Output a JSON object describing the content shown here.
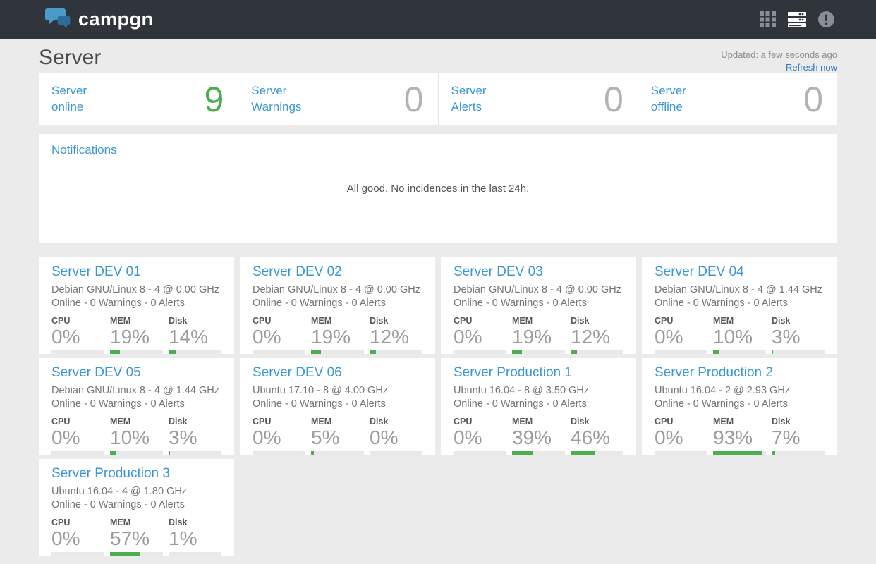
{
  "navbar": {
    "brand": "campgn",
    "icons": [
      {
        "name": "apps-grid-icon",
        "active": false
      },
      {
        "name": "servers-icon",
        "active": true
      },
      {
        "name": "alert-circle-icon",
        "active": false
      }
    ]
  },
  "header": {
    "title": "Server",
    "updated": "Updated: a few seconds ago",
    "refresh": "Refresh now"
  },
  "stats": [
    {
      "label_line1": "Server",
      "label_line2": "online",
      "value": "9",
      "state": "ok"
    },
    {
      "label_line1": "Server",
      "label_line2": "Warnings",
      "value": "0",
      "state": "neutral"
    },
    {
      "label_line1": "Server",
      "label_line2": "Alerts",
      "value": "0",
      "state": "neutral"
    },
    {
      "label_line1": "Server",
      "label_line2": "offline",
      "value": "0",
      "state": "neutral"
    }
  ],
  "notifications": {
    "title": "Notifications",
    "message": "All good. No incidences in the last 24h."
  },
  "metric_labels": {
    "cpu": "CPU",
    "mem": "MEM",
    "disk": "Disk"
  },
  "servers": [
    {
      "name": "Server DEV 01",
      "os": "Debian GNU/Linux 8 - 4 @ 0.00 GHz",
      "status": "Online - 0 Warnings - 0 Alerts",
      "cpu": {
        "text": "0%",
        "pct": 0
      },
      "mem": {
        "text": "19%",
        "pct": 19
      },
      "disk": {
        "text": "14%",
        "pct": 14
      }
    },
    {
      "name": "Server DEV 02",
      "os": "Debian GNU/Linux 8 - 4 @ 0.00 GHz",
      "status": "Online - 0 Warnings - 0 Alerts",
      "cpu": {
        "text": "0%",
        "pct": 0
      },
      "mem": {
        "text": "19%",
        "pct": 19
      },
      "disk": {
        "text": "12%",
        "pct": 12
      }
    },
    {
      "name": "Server DEV 03",
      "os": "Debian GNU/Linux 8 - 4 @ 0.00 GHz",
      "status": "Online - 0 Warnings - 0 Alerts",
      "cpu": {
        "text": "0%",
        "pct": 0
      },
      "mem": {
        "text": "19%",
        "pct": 19
      },
      "disk": {
        "text": "12%",
        "pct": 12
      }
    },
    {
      "name": "Server DEV 04",
      "os": "Debian GNU/Linux 8 - 4 @ 1.44 GHz",
      "status": "Online - 0 Warnings - 0 Alerts",
      "cpu": {
        "text": "0%",
        "pct": 0
      },
      "mem": {
        "text": "10%",
        "pct": 10
      },
      "disk": {
        "text": "3%",
        "pct": 3
      }
    },
    {
      "name": "Server DEV 05",
      "os": "Debian GNU/Linux 8 - 4 @ 1.44 GHz",
      "status": "Online - 0 Warnings - 0 Alerts",
      "cpu": {
        "text": "0%",
        "pct": 0
      },
      "mem": {
        "text": "10%",
        "pct": 10
      },
      "disk": {
        "text": "3%",
        "pct": 3
      }
    },
    {
      "name": "Server DEV 06",
      "os": "Ubuntu 17.10 - 8 @ 4.00 GHz",
      "status": "Online - 0 Warnings - 0 Alerts",
      "cpu": {
        "text": "0%",
        "pct": 0
      },
      "mem": {
        "text": "5%",
        "pct": 5
      },
      "disk": {
        "text": "0%",
        "pct": 0
      }
    },
    {
      "name": "Server Production 1",
      "os": "Ubuntu 16.04 - 8 @ 3.50 GHz",
      "status": "Online - 0 Warnings - 0 Alerts",
      "cpu": {
        "text": "0%",
        "pct": 0
      },
      "mem": {
        "text": "39%",
        "pct": 39
      },
      "disk": {
        "text": "46%",
        "pct": 46
      }
    },
    {
      "name": "Server Production 2",
      "os": "Ubuntu 16.04 - 2 @ 2.93 GHz",
      "status": "Online - 0 Warnings - 0 Alerts",
      "cpu": {
        "text": "0%",
        "pct": 0
      },
      "mem": {
        "text": "93%",
        "pct": 93
      },
      "disk": {
        "text": "7%",
        "pct": 7
      }
    },
    {
      "name": "Server Production 3",
      "os": "Ubuntu 16.04 - 4 @ 1.80 GHz",
      "status": "Online - 0 Warnings - 0 Alerts",
      "cpu": {
        "text": "0%",
        "pct": 0
      },
      "mem": {
        "text": "57%",
        "pct": 57
      },
      "disk": {
        "text": "1%",
        "pct": 1
      }
    }
  ],
  "colors": {
    "navbar_bg": "#2f353a",
    "page_bg": "#ebebeb",
    "card_bg": "#ffffff",
    "link_blue": "#3b97d3",
    "ok_green": "#4cae4c",
    "neutral_gray": "#b3b3b3",
    "body_text": "#757575",
    "logo_bubble_light": "#4a9bc9",
    "logo_bubble_dark": "#2d6e99"
  }
}
